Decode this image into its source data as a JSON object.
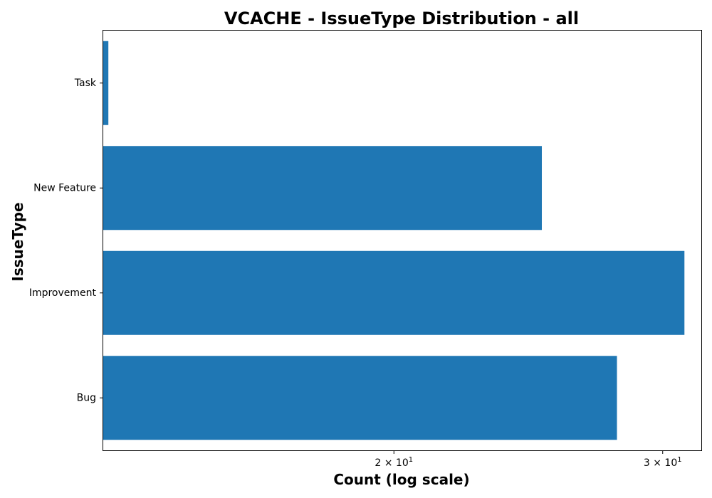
{
  "chart_data": {
    "type": "bar",
    "orientation": "horizontal",
    "title": "VCACHE - IssueType Distribution - all",
    "xlabel": "Count (log scale)",
    "ylabel": "IssueType",
    "x_scale": "log",
    "xlim": [
      12.9,
      31.8
    ],
    "categories": [
      "Bug",
      "Improvement",
      "New Feature",
      "Task"
    ],
    "values": [
      28,
      31,
      25,
      13
    ],
    "bar_color": "#1f77b4",
    "x_ticks": [
      {
        "value": 20,
        "label_base": "2 × 10",
        "label_exp": "1"
      },
      {
        "value": 30,
        "label_base": "3 × 10",
        "label_exp": "1"
      }
    ],
    "grid": false
  }
}
